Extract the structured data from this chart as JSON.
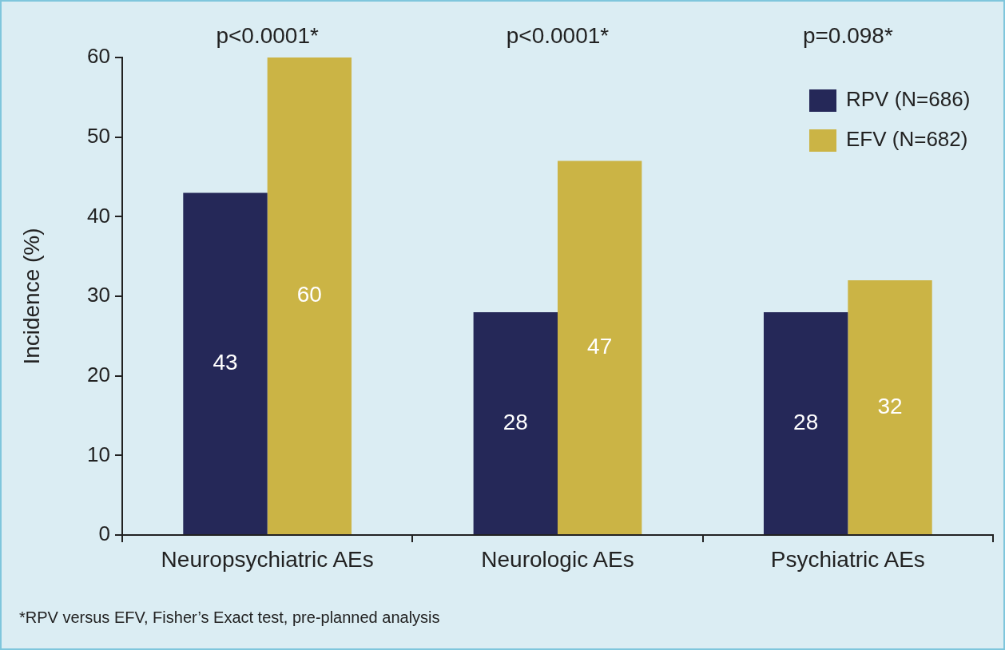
{
  "chart_data": {
    "type": "bar",
    "ylabel": "Incidence (%)",
    "categories": [
      "Neuropsychiatric AEs",
      "Neurologic AEs",
      "Psychiatric AEs"
    ],
    "series": [
      {
        "name": "RPV (N=686)",
        "color": "#252858",
        "values": [
          43,
          28,
          28
        ]
      },
      {
        "name": "EFV (N=682)",
        "color": "#cbb445",
        "values": [
          60,
          47,
          32
        ]
      }
    ],
    "ylim": [
      0,
      60
    ],
    "yticks": [
      0,
      10,
      20,
      30,
      40,
      50,
      60
    ],
    "grid": false,
    "legend": "top right",
    "data_labels": true,
    "annotations": [
      "p<0.0001*",
      "p<0.0001*",
      "p=0.098*",
      "*RPV versus EFV, Fisher’s Exact test, pre-planned analysis"
    ]
  }
}
